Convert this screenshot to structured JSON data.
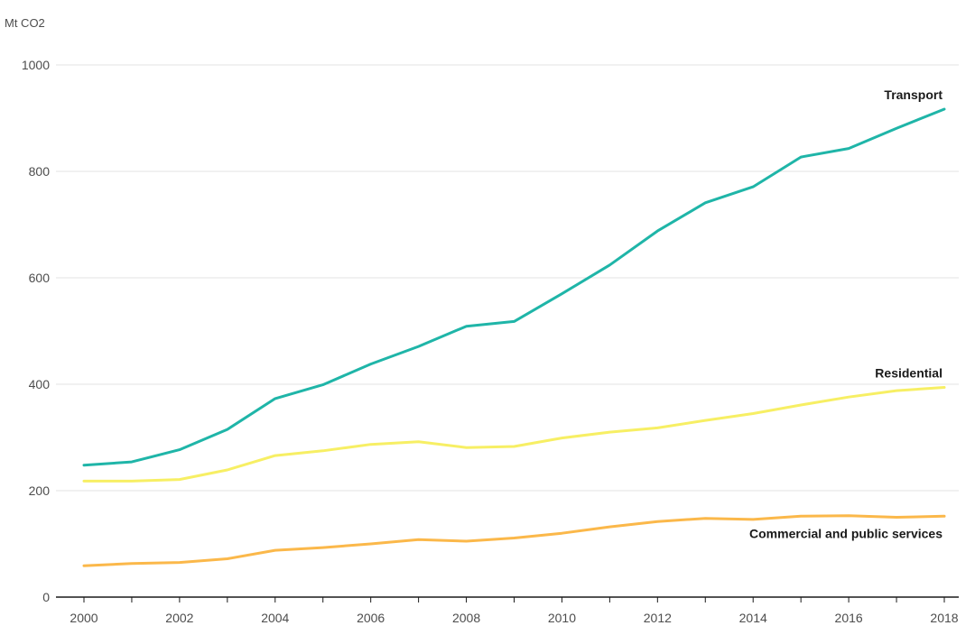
{
  "chart_data": {
    "type": "line",
    "title": "",
    "xlabel": "",
    "ylabel": "Mt CO2",
    "x": [
      2000,
      2001,
      2002,
      2003,
      2004,
      2005,
      2006,
      2007,
      2008,
      2009,
      2010,
      2011,
      2012,
      2013,
      2014,
      2015,
      2016,
      2017,
      2018
    ],
    "xticks": [
      "2000",
      "2002",
      "2004",
      "2006",
      "2008",
      "2010",
      "2012",
      "2014",
      "2016",
      "2018"
    ],
    "yticks": [
      "0",
      "200",
      "400",
      "600",
      "800",
      "1000"
    ],
    "xlim": [
      2000,
      2018
    ],
    "ylim": [
      0,
      1000
    ],
    "grid": "horizontal",
    "legend": "inline labels at line ends",
    "series": [
      {
        "name": "Transport",
        "color": "#1fb5a8",
        "values": [
          248,
          254,
          277,
          315,
          373,
          399,
          438,
          471,
          509,
          518,
          570,
          624,
          688,
          741,
          771,
          827,
          843,
          881,
          917
        ]
      },
      {
        "name": "Residential",
        "color": "#f7ef64",
        "values": [
          218,
          218,
          221,
          239,
          266,
          275,
          287,
          292,
          281,
          283,
          299,
          310,
          318,
          332,
          345,
          361,
          376,
          388,
          394
        ]
      },
      {
        "name": "Commercial and public services",
        "color": "#fbb84a",
        "values": [
          59,
          63,
          65,
          72,
          88,
          93,
          100,
          108,
          105,
          111,
          120,
          132,
          142,
          148,
          146,
          152,
          153,
          150,
          152
        ]
      }
    ]
  }
}
